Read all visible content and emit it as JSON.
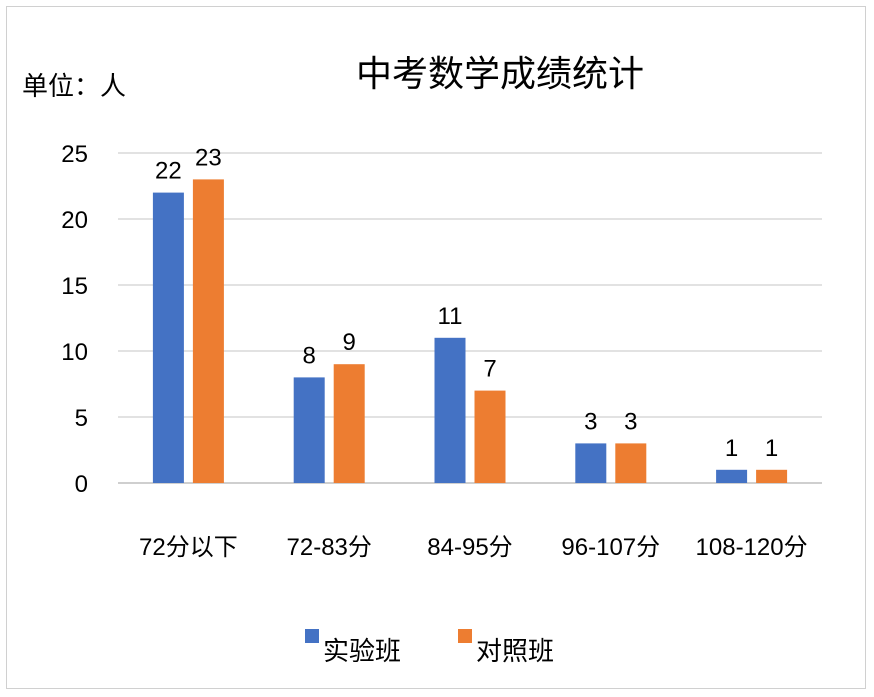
{
  "chart_data": {
    "type": "bar",
    "title": "中考数学成绩统计",
    "unit_label": "单位：人",
    "categories": [
      "72分以下",
      "72-83分",
      "84-95分",
      "96-107分",
      "108-120分"
    ],
    "series": [
      {
        "name": "实验班",
        "color": "#4472C4",
        "values": [
          22,
          8,
          11,
          3,
          1
        ]
      },
      {
        "name": "对照班",
        "color": "#ED7D31",
        "values": [
          23,
          9,
          7,
          3,
          1
        ]
      }
    ],
    "yticks": [
      0,
      5,
      10,
      15,
      20,
      25
    ],
    "ylim": [
      0,
      25
    ],
    "grid": true,
    "legend_position": "bottom"
  }
}
